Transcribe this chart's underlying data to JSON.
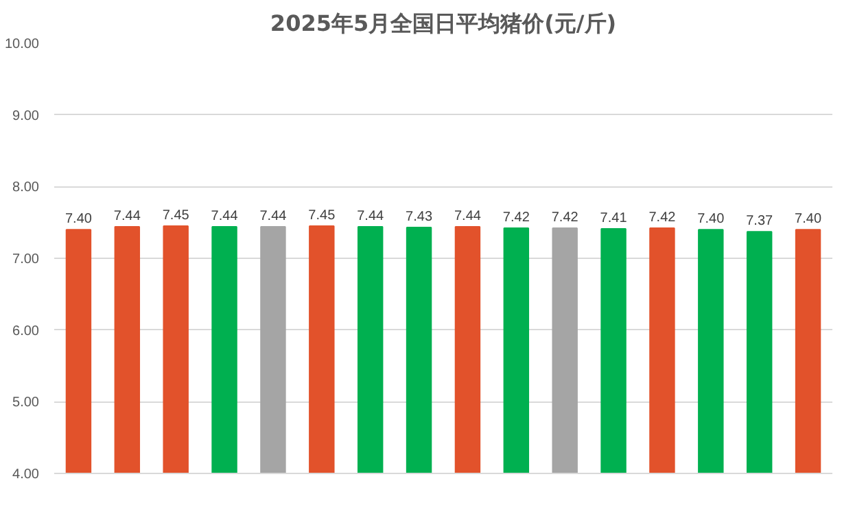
{
  "chart_data": {
    "type": "bar",
    "title": "2025年5月全国日平均猪价(元/斤)",
    "categories": [
      null,
      null,
      null,
      null,
      null,
      null,
      null,
      null,
      null,
      null,
      null,
      null,
      null,
      null,
      null,
      null
    ],
    "values": [
      7.4,
      7.44,
      7.45,
      7.44,
      7.44,
      7.45,
      7.44,
      7.43,
      7.44,
      7.42,
      7.42,
      7.41,
      7.42,
      7.4,
      7.37,
      7.4
    ],
    "colors": [
      "#e2522b",
      "#e2522b",
      "#e2522b",
      "#00b050",
      "#a5a5a5",
      "#e2522b",
      "#00b050",
      "#00b050",
      "#e2522b",
      "#00b050",
      "#a5a5a5",
      "#00b050",
      "#e2522b",
      "#00b050",
      "#00b050",
      "#e2522b"
    ],
    "value_labels": [
      "7.40",
      "7.44",
      "7.45",
      "7.44",
      "7.44",
      "7.45",
      "7.44",
      "7.43",
      "7.44",
      "7.42",
      "7.42",
      "7.41",
      "7.42",
      "7.40",
      "7.37",
      "7.40"
    ],
    "ylim": [
      4,
      10
    ],
    "yticks": [
      {
        "value": 4,
        "label": "4.00"
      },
      {
        "value": 5,
        "label": "5.00"
      },
      {
        "value": 6,
        "label": "6.00"
      },
      {
        "value": 7,
        "label": "7.00"
      },
      {
        "value": 8,
        "label": "8.00"
      },
      {
        "value": 9,
        "label": "9.00"
      },
      {
        "value": 10,
        "label": "10.00"
      }
    ],
    "grid": "y"
  }
}
